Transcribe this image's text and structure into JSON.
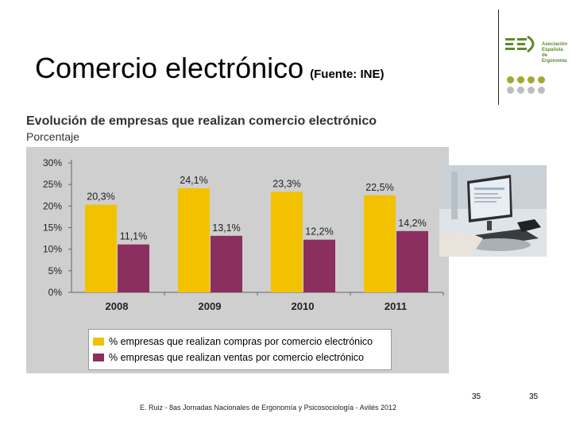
{
  "slide": {
    "title": "Comercio electrónico",
    "source": "(Fuente: INE)",
    "footer": "E. Ruiz - 8as Jornadas Nacionales de Ergonomía y Psicosociología - Avilés 2012",
    "page_numbers": [
      "35",
      "35"
    ]
  },
  "logo": {
    "text": [
      "Asociación",
      "Española de",
      "Ergonomía"
    ],
    "primary_color": "#5c8a2c",
    "dot_colors": [
      "#a3a832",
      "#a3a832",
      "#a3a832",
      "#a3a832",
      "#bdbdbd",
      "#bdbdbd",
      "#bdbdbd",
      "#bdbdbd"
    ]
  },
  "chart_data": {
    "type": "bar",
    "title": "Evolución de empresas que realizan comercio electrónico",
    "subtitle": "Porcentaje",
    "categories": [
      "2008",
      "2009",
      "2010",
      "2011"
    ],
    "series": [
      {
        "name": "% empresas que realizan compras por comercio electrónico",
        "values": [
          20.3,
          24.1,
          23.3,
          22.5
        ],
        "labels": [
          "20,3%",
          "24,1%",
          "23,3%",
          "22,5%"
        ],
        "color": "#f2c200"
      },
      {
        "name": "% empresas que realizan ventas por comercio electrónico",
        "values": [
          11.1,
          13.1,
          12.2,
          14.2
        ],
        "labels": [
          "11,1%",
          "13,1%",
          "12,2%",
          "14,2%"
        ],
        "color": "#8b2f5e"
      }
    ],
    "y_ticks": [
      0,
      5,
      10,
      15,
      20,
      25,
      30
    ],
    "y_tick_labels": [
      "0%",
      "5%",
      "10%",
      "15%",
      "20%",
      "25%",
      "30%"
    ],
    "ylim": [
      0,
      30
    ],
    "grid": false,
    "legend_position": "bottom",
    "background": "#cfcfcf"
  }
}
